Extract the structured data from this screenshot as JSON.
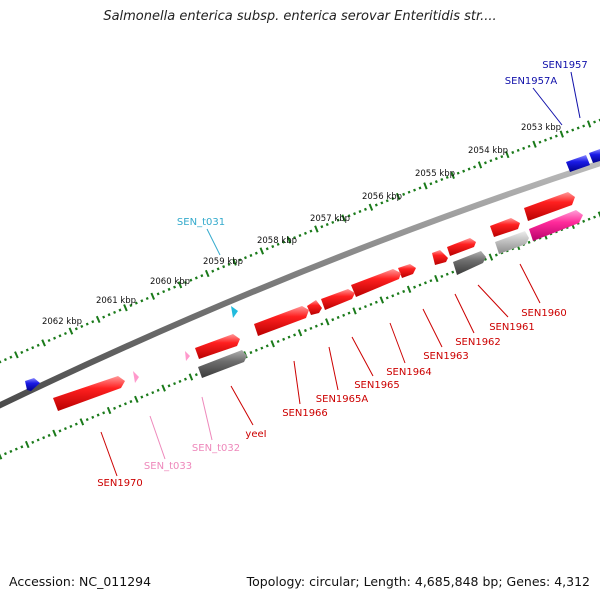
{
  "title": "Salmonella enterica subsp. enterica serovar Enteritidis str....",
  "footer": {
    "accession": "Accession: NC_011294",
    "summary": "Topology: circular; Length: 4,685,848 bp; Genes: 4,312"
  },
  "colors": {
    "kbp_ticks": "#1a7a1a",
    "backbone": "#808080",
    "gene_red": "#ee1111",
    "gene_blue": "#1a1ae6",
    "gene_gray": "#6e6e6e",
    "gene_lightgray": "#c4c4c4",
    "gene_pink": "#ff2a9a",
    "trna_cyan": "#22bbdd",
    "trna_pink": "#ff99cc",
    "label_red": "#cc0000",
    "label_blue": "#1111aa",
    "label_cyan": "#33aacc",
    "label_pink": "#ee88bb"
  },
  "scale_labels": [
    "2053 kbp",
    "2054 kbp",
    "2055 kbp",
    "2056 kbp",
    "2057 kbp",
    "2058 kbp",
    "2059 kbp",
    "2060 kbp",
    "2061 kbp",
    "2062 kbp"
  ],
  "gene_labels": [
    {
      "text": "SEN1957",
      "color_key": "label_blue"
    },
    {
      "text": "SEN1957A",
      "color_key": "label_blue"
    },
    {
      "text": "SEN_t031",
      "color_key": "label_cyan"
    },
    {
      "text": "SEN1960",
      "color_key": "label_red"
    },
    {
      "text": "SEN1961",
      "color_key": "label_red"
    },
    {
      "text": "SEN1962",
      "color_key": "label_red"
    },
    {
      "text": "SEN1963",
      "color_key": "label_red"
    },
    {
      "text": "SEN1964",
      "color_key": "label_red"
    },
    {
      "text": "SEN1965",
      "color_key": "label_red"
    },
    {
      "text": "SEN1965A",
      "color_key": "label_red"
    },
    {
      "text": "SEN1966",
      "color_key": "label_red"
    },
    {
      "text": "yeeI",
      "color_key": "label_red"
    },
    {
      "text": "SEN_t032",
      "color_key": "label_pink"
    },
    {
      "text": "SEN_t033",
      "color_key": "label_pink"
    },
    {
      "text": "SEN1970",
      "color_key": "label_red"
    }
  ]
}
